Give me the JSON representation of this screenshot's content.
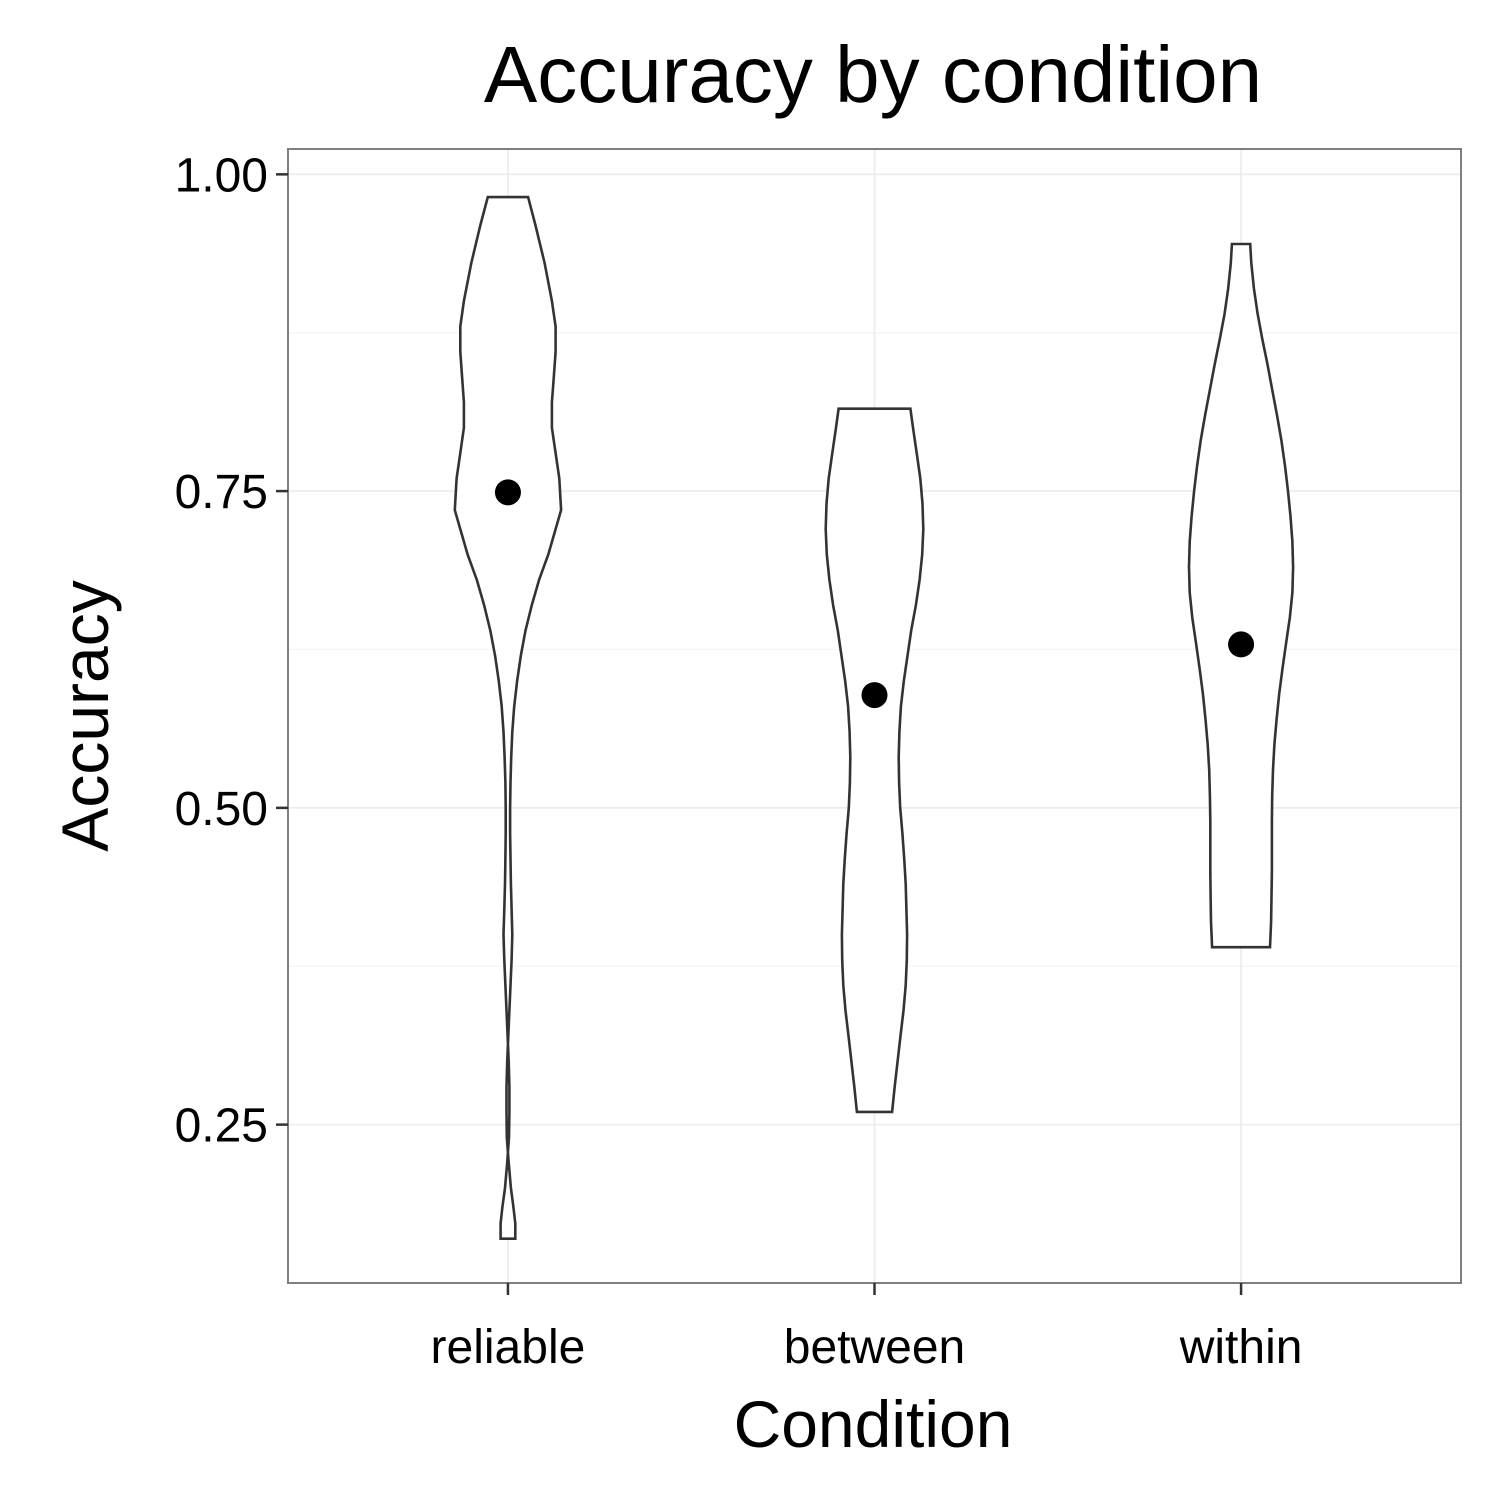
{
  "chart_data": {
    "type": "violin",
    "title": "Accuracy by condition",
    "xlabel": "Condition",
    "ylabel": "Accuracy",
    "categories": [
      "reliable",
      "between",
      "within"
    ],
    "ylim": [
      0.125,
      1.02
    ],
    "yticks": [
      0.25,
      0.5,
      0.75,
      1.0
    ],
    "ytick_labels": [
      "0.25",
      "0.50",
      "0.75",
      "1.00"
    ],
    "grid": true,
    "point_values": [
      0.749,
      0.589,
      0.629
    ],
    "violins": [
      {
        "category": "reliable",
        "profile": [
          [
            0.982,
            0.055
          ],
          [
            0.96,
            0.075
          ],
          [
            0.93,
            0.1
          ],
          [
            0.9,
            0.12
          ],
          [
            0.88,
            0.13
          ],
          [
            0.86,
            0.13
          ],
          [
            0.84,
            0.125
          ],
          [
            0.82,
            0.12
          ],
          [
            0.8,
            0.12
          ],
          [
            0.78,
            0.13
          ],
          [
            0.76,
            0.14
          ],
          [
            0.735,
            0.145
          ],
          [
            0.72,
            0.13
          ],
          [
            0.7,
            0.11
          ],
          [
            0.68,
            0.085
          ],
          [
            0.66,
            0.065
          ],
          [
            0.64,
            0.048
          ],
          [
            0.62,
            0.035
          ],
          [
            0.6,
            0.025
          ],
          [
            0.58,
            0.017
          ],
          [
            0.56,
            0.012
          ],
          [
            0.54,
            0.009
          ],
          [
            0.52,
            0.007
          ],
          [
            0.5,
            0.006
          ],
          [
            0.48,
            0.006
          ],
          [
            0.46,
            0.007
          ],
          [
            0.44,
            0.008
          ],
          [
            0.42,
            0.01
          ],
          [
            0.4,
            0.012
          ],
          [
            0.38,
            0.01
          ],
          [
            0.36,
            0.007
          ],
          [
            0.34,
            0.004
          ],
          [
            0.32,
            0.001
          ],
          [
            0.3,
            -0.002
          ],
          [
            0.28,
            -0.004
          ],
          [
            0.26,
            -0.004
          ],
          [
            0.24,
            -0.003
          ],
          [
            0.22,
            0.002
          ],
          [
            0.2,
            0.008
          ],
          [
            0.185,
            0.015
          ],
          [
            0.172,
            0.02
          ],
          [
            0.16,
            0.02
          ]
        ]
      },
      {
        "category": "between",
        "profile": [
          [
            0.815,
            0.098
          ],
          [
            0.8,
            0.105
          ],
          [
            0.78,
            0.115
          ],
          [
            0.76,
            0.125
          ],
          [
            0.74,
            0.131
          ],
          [
            0.72,
            0.133
          ],
          [
            0.7,
            0.13
          ],
          [
            0.68,
            0.123
          ],
          [
            0.66,
            0.113
          ],
          [
            0.64,
            0.1
          ],
          [
            0.62,
            0.09
          ],
          [
            0.6,
            0.08
          ],
          [
            0.58,
            0.072
          ],
          [
            0.56,
            0.068
          ],
          [
            0.54,
            0.066
          ],
          [
            0.52,
            0.067
          ],
          [
            0.5,
            0.07
          ],
          [
            0.48,
            0.076
          ],
          [
            0.46,
            0.081
          ],
          [
            0.44,
            0.085
          ],
          [
            0.42,
            0.087
          ],
          [
            0.4,
            0.089
          ],
          [
            0.38,
            0.088
          ],
          [
            0.36,
            0.085
          ],
          [
            0.34,
            0.079
          ],
          [
            0.32,
            0.071
          ],
          [
            0.3,
            0.063
          ],
          [
            0.28,
            0.055
          ],
          [
            0.26,
            0.048
          ]
        ]
      },
      {
        "category": "within",
        "profile": [
          [
            0.945,
            0.025
          ],
          [
            0.93,
            0.028
          ],
          [
            0.91,
            0.035
          ],
          [
            0.89,
            0.045
          ],
          [
            0.87,
            0.058
          ],
          [
            0.85,
            0.072
          ],
          [
            0.83,
            0.085
          ],
          [
            0.81,
            0.098
          ],
          [
            0.79,
            0.11
          ],
          [
            0.77,
            0.12
          ],
          [
            0.75,
            0.128
          ],
          [
            0.73,
            0.135
          ],
          [
            0.71,
            0.14
          ],
          [
            0.69,
            0.142
          ],
          [
            0.67,
            0.14
          ],
          [
            0.65,
            0.133
          ],
          [
            0.63,
            0.123
          ],
          [
            0.61,
            0.113
          ],
          [
            0.59,
            0.104
          ],
          [
            0.57,
            0.097
          ],
          [
            0.55,
            0.091
          ],
          [
            0.53,
            0.087
          ],
          [
            0.51,
            0.085
          ],
          [
            0.49,
            0.084
          ],
          [
            0.47,
            0.084
          ],
          [
            0.45,
            0.084
          ],
          [
            0.43,
            0.083
          ],
          [
            0.41,
            0.082
          ],
          [
            0.39,
            0.079
          ]
        ]
      }
    ]
  }
}
